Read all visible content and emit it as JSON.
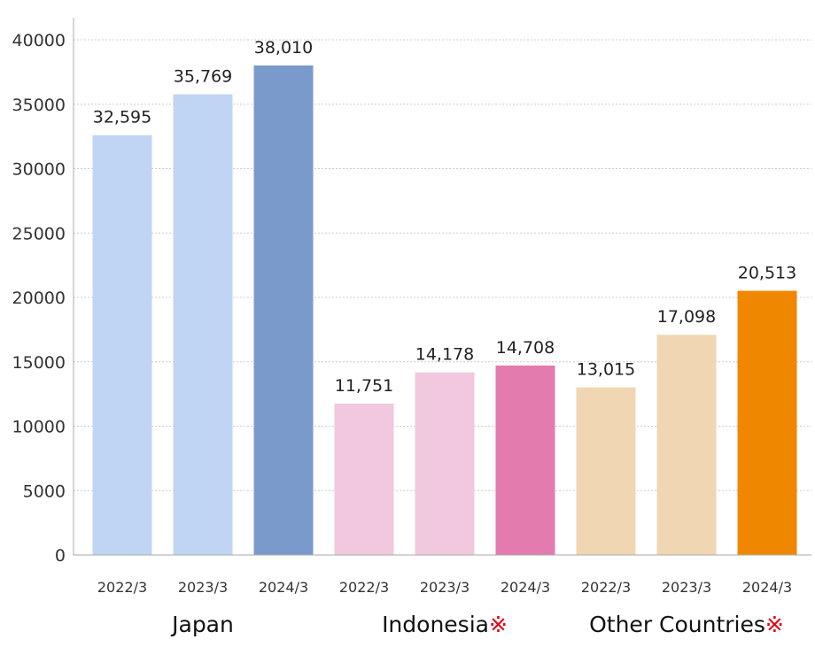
{
  "chart_data": {
    "type": "bar",
    "ylim": [
      0,
      40000
    ],
    "yticks": [
      "0",
      "5000",
      "10000",
      "15000",
      "20000",
      "25000",
      "30000",
      "35000",
      "40000"
    ],
    "grid": true,
    "groups": [
      {
        "name": "Japan",
        "mark": "",
        "bars": [
          {
            "category": "2022/3",
            "value": 32595,
            "label": "32,595",
            "color": "#c0d5f4"
          },
          {
            "category": "2023/3",
            "value": 35769,
            "label": "35,769",
            "color": "#c0d5f4"
          },
          {
            "category": "2024/3",
            "value": 38010,
            "label": "38,010",
            "color": "#7a9acc"
          }
        ]
      },
      {
        "name": "Indonesia",
        "mark": "※",
        "bars": [
          {
            "category": "2022/3",
            "value": 11751,
            "label": "11,751",
            "color": "#f1c8de"
          },
          {
            "category": "2023/3",
            "value": 14178,
            "label": "14,178",
            "color": "#f1c8de"
          },
          {
            "category": "2024/3",
            "value": 14708,
            "label": "14,708",
            "color": "#e37bae"
          }
        ]
      },
      {
        "name": "Other Countries",
        "mark": "※",
        "bars": [
          {
            "category": "2022/3",
            "value": 13015,
            "label": "13,015",
            "color": "#f0d6b2"
          },
          {
            "category": "2023/3",
            "value": 17098,
            "label": "17,098",
            "color": "#f0d6b2"
          },
          {
            "category": "2024/3",
            "value": 20513,
            "label": "20,513",
            "color": "#f08700"
          }
        ]
      }
    ]
  }
}
